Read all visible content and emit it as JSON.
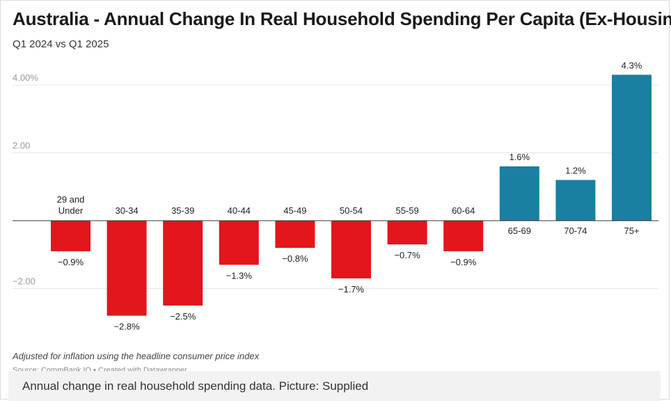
{
  "title": "Australia - Annual Change In Real Household Spending Per Capita (Ex-Housing)",
  "subtitle": "Q1 2024 vs Q1 2025",
  "note": "Adjusted for inflation using the headline consumer price index",
  "source": "Source: CommBank IQ • Created with Datawrapper",
  "caption": "Annual change in real household spending data. Picture: Supplied",
  "colors": {
    "negative": "#e2161b",
    "positive": "#1a7fa0",
    "grid": "#e6e6e6",
    "axis_text": "#999999"
  },
  "chart_data": {
    "type": "bar",
    "title": "Australia - Annual Change In Real Household Spending Per Capita (Ex-Housing)",
    "subtitle": "Q1 2024 vs Q1 2025",
    "categories": [
      "29 and\nUnder",
      "30-34",
      "35-39",
      "40-44",
      "45-49",
      "50-54",
      "55-59",
      "60-64",
      "65-69",
      "70-74",
      "75+"
    ],
    "values": [
      -0.9,
      -2.8,
      -2.5,
      -1.3,
      -0.8,
      -1.7,
      -0.7,
      -0.9,
      1.6,
      1.2,
      4.3
    ],
    "value_labels": [
      "−0.9%",
      "−2.8%",
      "−2.5%",
      "−1.3%",
      "−0.8%",
      "−1.7%",
      "−0.7%",
      "−0.9%",
      "1.6%",
      "1.2%",
      "4.3%"
    ],
    "y_ticks": [
      4,
      2,
      -2
    ],
    "y_tick_labels": [
      "4.00%",
      "2.00",
      "−2.00"
    ],
    "ylim": [
      -3.2,
      4.5
    ],
    "grid": true,
    "xlabel": "",
    "ylabel": ""
  }
}
